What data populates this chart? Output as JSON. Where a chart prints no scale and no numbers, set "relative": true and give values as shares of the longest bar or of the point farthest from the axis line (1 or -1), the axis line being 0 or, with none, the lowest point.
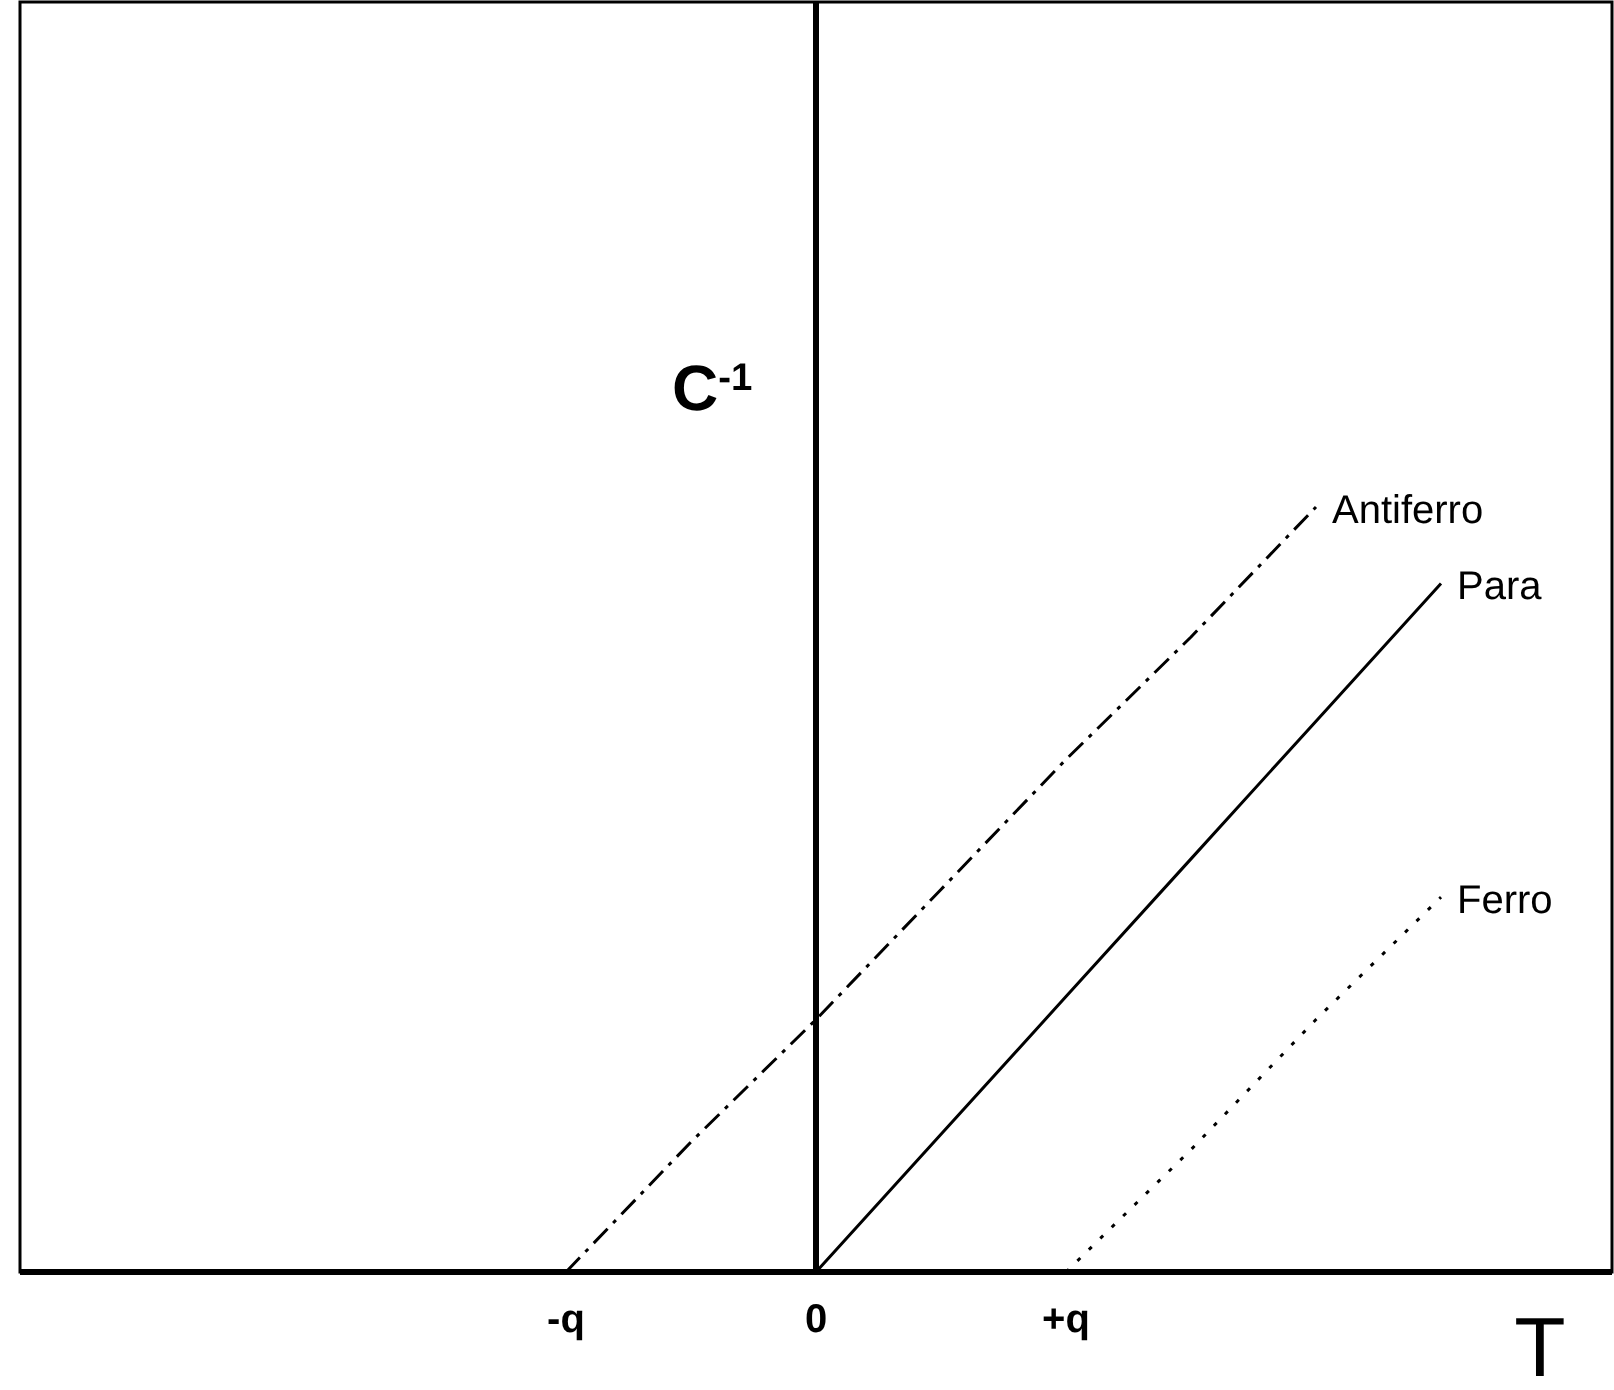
{
  "chart_data": {
    "type": "line",
    "relative": true,
    "xlabel": "T",
    "ylabel": "C$^{-1}$",
    "categories": [
      null,
      null,
      null,
      null,
      "-q",
      null,
      "0",
      null,
      "+q",
      null,
      null,
      null,
      null
    ],
    "marker": "none",
    "series": [
      {
        "name": "Antiferro",
        "color": "#000000",
        "line_style": "dashdot",
        "values": [
          null,
          null,
          null,
          null,
          0,
          0.17,
          0.33,
          0.5,
          0.67,
          0.83,
          1,
          null,
          null
        ]
      },
      {
        "name": "Para",
        "color": "#000000",
        "line_style": "solid",
        "values": [
          null,
          null,
          null,
          null,
          null,
          null,
          0,
          0.18,
          0.36,
          0.54,
          0.72,
          0.9,
          null
        ]
      },
      {
        "name": "Ferro",
        "color": "#000000",
        "line_style": "dotted",
        "values": [
          null,
          null,
          null,
          null,
          null,
          null,
          null,
          null,
          0,
          0.16,
          0.33,
          0.49,
          null
        ]
      }
    ]
  }
}
